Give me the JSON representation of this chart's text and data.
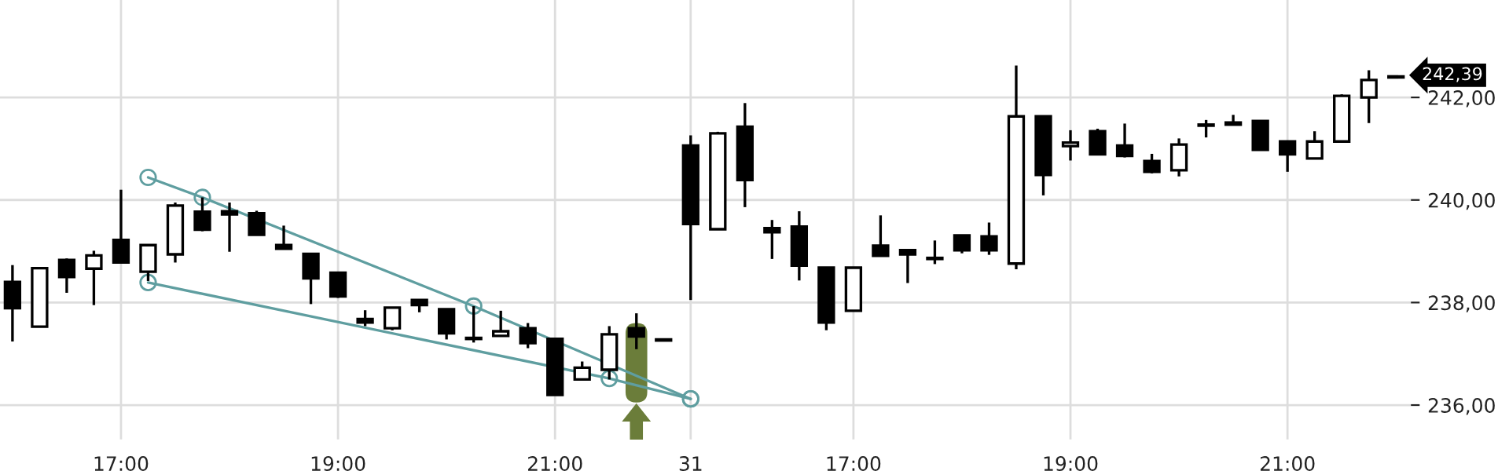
{
  "chart_data": {
    "type": "candlestick",
    "categories": [
      null,
      null,
      null,
      null,
      "17:00",
      null,
      null,
      null,
      null,
      null,
      null,
      null,
      "19:00",
      null,
      null,
      null,
      null,
      null,
      null,
      null,
      "21:00",
      null,
      null,
      null,
      null,
      "31",
      null,
      null,
      null,
      null,
      null,
      "17:00",
      null,
      null,
      null,
      null,
      null,
      null,
      null,
      "19:00",
      null,
      null,
      null,
      null,
      null,
      null,
      null,
      "21:00",
      null,
      null,
      null,
      null
    ],
    "ohlc": [
      [
        238.4,
        238.73,
        237.24,
        237.89
      ],
      [
        237.53,
        238.67,
        237.53,
        238.67
      ],
      [
        238.83,
        238.86,
        238.19,
        238.5
      ],
      [
        238.66,
        239.01,
        237.95,
        238.92
      ],
      [
        239.22,
        240.2,
        238.78,
        238.78
      ],
      [
        238.6,
        239.12,
        238.42,
        239.12
      ],
      [
        238.94,
        239.95,
        238.78,
        239.89
      ],
      [
        239.77,
        240.05,
        239.39,
        239.42
      ],
      [
        239.78,
        239.95,
        238.99,
        239.72
      ],
      [
        239.74,
        239.79,
        239.32,
        239.32
      ],
      [
        239.12,
        239.5,
        239.05,
        239.05
      ],
      [
        238.95,
        238.95,
        237.97,
        238.47
      ],
      [
        238.58,
        238.58,
        238.09,
        238.12
      ],
      [
        237.68,
        237.85,
        237.54,
        237.61
      ],
      [
        237.5,
        237.9,
        237.46,
        237.9
      ],
      [
        238.05,
        238.05,
        237.81,
        237.95
      ],
      [
        237.87,
        237.87,
        237.28,
        237.4
      ],
      [
        237.29,
        237.93,
        237.22,
        237.29
      ],
      [
        237.35,
        237.84,
        237.35,
        237.44
      ],
      [
        237.5,
        237.6,
        237.11,
        237.21
      ],
      [
        237.29,
        237.29,
        236.2,
        236.2
      ],
      [
        236.5,
        236.85,
        236.5,
        236.73
      ],
      [
        236.69,
        237.54,
        236.5,
        237.38
      ],
      [
        237.5,
        237.79,
        237.09,
        237.34
      ],
      [
        237.26,
        237.26,
        237.26,
        237.26
      ],
      [
        241.06,
        241.26,
        238.05,
        239.53
      ],
      [
        239.43,
        241.33,
        239.43,
        241.3
      ],
      [
        241.43,
        241.89,
        239.86,
        240.39
      ],
      [
        239.45,
        239.61,
        238.85,
        239.37
      ],
      [
        239.48,
        239.78,
        238.43,
        238.72
      ],
      [
        238.68,
        238.68,
        237.46,
        237.61
      ],
      [
        237.84,
        238.68,
        237.84,
        238.68
      ],
      [
        239.11,
        239.7,
        238.91,
        238.91
      ],
      [
        239.02,
        239.02,
        238.38,
        238.94
      ],
      [
        238.85,
        239.21,
        238.75,
        238.85
      ],
      [
        239.31,
        239.32,
        238.96,
        239.02
      ],
      [
        239.29,
        239.56,
        238.93,
        239.02
      ],
      [
        238.76,
        242.62,
        238.65,
        241.63
      ],
      [
        241.63,
        241.63,
        240.09,
        240.49
      ],
      [
        241.05,
        241.36,
        240.77,
        241.12
      ],
      [
        241.34,
        241.39,
        240.89,
        240.89
      ],
      [
        241.06,
        241.49,
        240.83,
        240.86
      ],
      [
        240.76,
        240.9,
        240.52,
        240.55
      ],
      [
        240.58,
        241.2,
        240.46,
        241.08
      ],
      [
        241.45,
        241.56,
        241.22,
        241.45
      ],
      [
        241.51,
        241.66,
        241.47,
        241.47
      ],
      [
        241.54,
        241.54,
        240.98,
        240.98
      ],
      [
        241.14,
        241.14,
        240.55,
        240.89
      ],
      [
        240.81,
        241.34,
        240.81,
        241.14
      ],
      [
        241.14,
        242.06,
        241.14,
        242.03
      ],
      [
        242.0,
        242.53,
        241.5,
        242.34
      ],
      [
        242.39,
        242.39,
        242.39,
        242.39
      ]
    ],
    "series": [
      {
        "type": "line",
        "color": "#5f9ea0",
        "values": [
          null,
          null,
          null,
          null,
          null,
          240.44,
          null,
          240.05,
          null,
          null,
          null,
          null,
          null,
          null,
          null,
          null,
          null,
          237.93,
          null,
          null,
          null,
          null,
          null,
          null,
          null,
          236.12,
          null,
          null,
          null,
          null,
          null,
          null,
          null,
          null,
          null,
          null,
          null,
          null,
          null,
          null,
          null,
          null,
          null,
          null,
          null,
          null,
          null,
          null,
          null,
          null,
          null,
          null
        ]
      },
      {
        "type": "line",
        "color": "#5f9ea0",
        "values": [
          null,
          null,
          null,
          null,
          null,
          238.39,
          null,
          null,
          null,
          null,
          null,
          null,
          null,
          null,
          null,
          null,
          null,
          null,
          null,
          null,
          null,
          null,
          236.52,
          null,
          null,
          236.12,
          null,
          null,
          null,
          null,
          null,
          null,
          null,
          null,
          null,
          null,
          null,
          null,
          null,
          null,
          null,
          null,
          null,
          null,
          null,
          null,
          null,
          null,
          null,
          null,
          null,
          null
        ]
      }
    ],
    "marker": "circle",
    "annotations": [
      "242,39"
    ],
    "ylim": [
      235.33,
      243.9
    ],
    "yticks": [
      {
        "value": 236,
        "label": "236,00"
      },
      {
        "value": 238,
        "label": "238,00"
      },
      {
        "value": 240,
        "label": "240,00"
      },
      {
        "value": 242,
        "label": "242,00"
      }
    ],
    "grid": true
  }
}
